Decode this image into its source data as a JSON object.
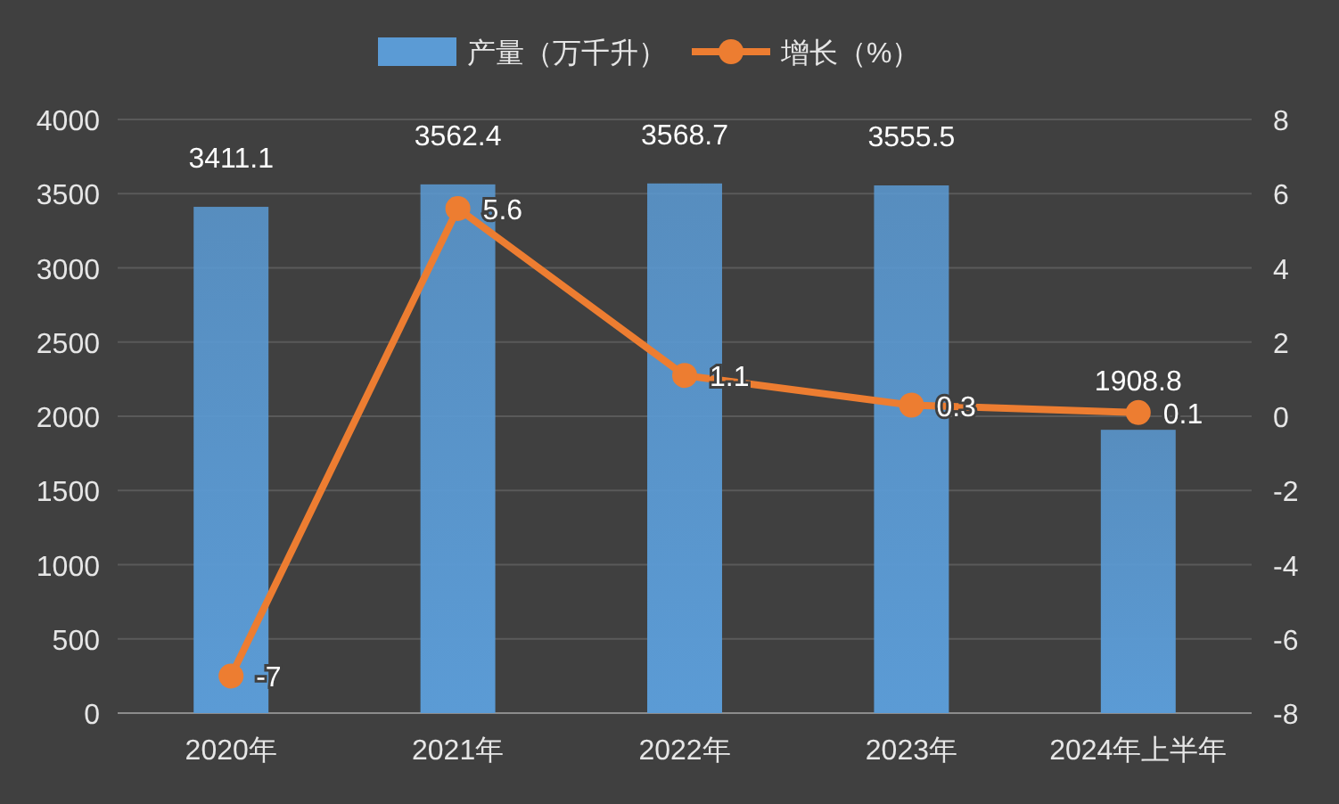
{
  "chart_data": {
    "type": "bar",
    "categories": [
      "2020年",
      "2021年",
      "2022年",
      "2023年",
      "2024年上半年"
    ],
    "series": [
      {
        "name": "产量（万千升）",
        "color": "#5b9bd5",
        "values": [
          3411.1,
          3562.4,
          3568.7,
          3555.5,
          1908.8
        ]
      },
      {
        "name": "增长（%）",
        "type": "line",
        "axis": "y2",
        "color": "#ed7d31",
        "values": [
          -7,
          5.6,
          1.1,
          0.3,
          0.1
        ]
      }
    ],
    "ylim": [
      0,
      4000
    ],
    "yticks": [
      0,
      500,
      1000,
      1500,
      2000,
      2500,
      3000,
      3500,
      4000
    ],
    "y2lim": [
      -8,
      8
    ],
    "y2ticks": [
      -8,
      -6,
      -4,
      -2,
      0,
      2,
      4,
      6,
      8
    ],
    "marker": "circle",
    "data_labels": true,
    "legend": "top",
    "grid": "y"
  }
}
